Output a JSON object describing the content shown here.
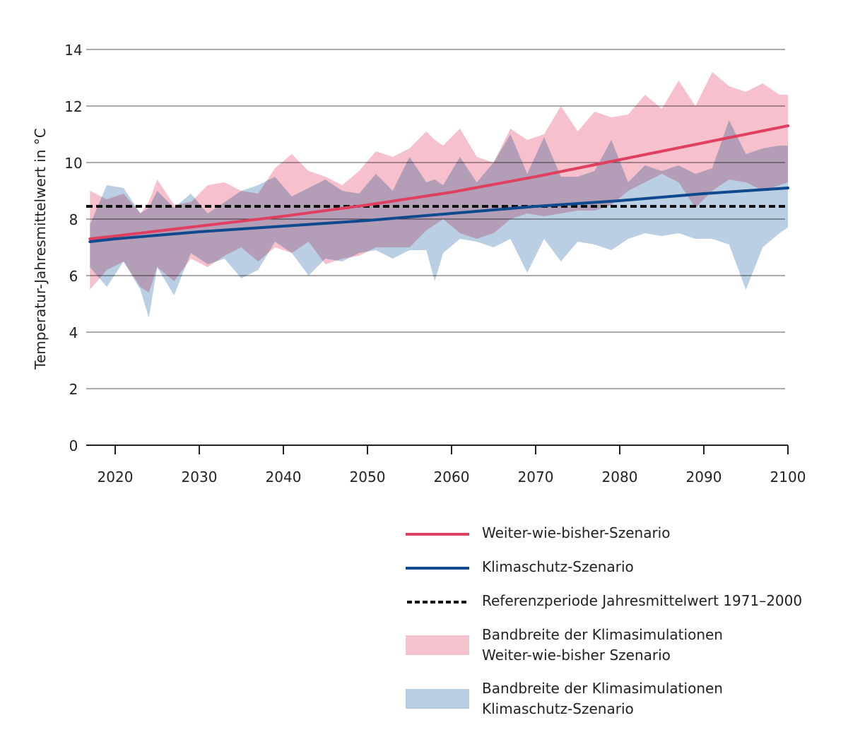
{
  "chart_data": {
    "type": "area",
    "title": "",
    "xlabel": "",
    "ylabel": "Temperatur-Jahresmittelwert in °C",
    "xlim": [
      2017,
      2100
    ],
    "ylim": [
      0,
      14
    ],
    "xticks": [
      "2020",
      "2030",
      "2040",
      "2050",
      "2060",
      "2070",
      "2080",
      "2090",
      "2100"
    ],
    "yticks": [
      "0",
      "2",
      "4",
      "6",
      "8",
      "10",
      "12",
      "14"
    ],
    "grid": true,
    "legend_position": "bottom-right",
    "band_x": [
      2017,
      2019,
      2021,
      2023,
      2024,
      2025,
      2027,
      2029,
      2031,
      2033,
      2035,
      2037,
      2039,
      2041,
      2043,
      2045,
      2047,
      2049,
      2051,
      2053,
      2055,
      2057,
      2058,
      2059,
      2061,
      2063,
      2065,
      2067,
      2069,
      2071,
      2073,
      2075,
      2077,
      2079,
      2081,
      2083,
      2085,
      2087,
      2089,
      2091,
      2093,
      2095,
      2097,
      2099,
      2100
    ],
    "bands": [
      {
        "name": "Bandbreite der Klimasimulationen Weiter-wie-bisher Szenario",
        "color": "#f2a7b8",
        "upper": [
          9.0,
          8.7,
          8.9,
          8.2,
          8.6,
          9.4,
          8.5,
          8.6,
          9.2,
          9.3,
          9.0,
          8.9,
          9.8,
          10.3,
          9.7,
          9.5,
          9.2,
          9.7,
          10.4,
          10.2,
          10.5,
          11.1,
          10.8,
          10.6,
          11.2,
          10.2,
          10.0,
          11.2,
          10.8,
          11.0,
          12.0,
          11.1,
          11.8,
          11.6,
          11.7,
          12.4,
          11.9,
          12.9,
          12.0,
          13.2,
          12.7,
          12.5,
          12.8,
          12.4,
          12.4
        ],
        "lower": [
          5.5,
          6.2,
          6.5,
          5.6,
          5.4,
          6.3,
          5.8,
          6.6,
          6.3,
          6.7,
          7.0,
          6.5,
          7.0,
          6.8,
          7.2,
          6.4,
          6.6,
          6.7,
          7.0,
          7.0,
          7.0,
          7.6,
          7.8,
          8.0,
          7.5,
          7.3,
          7.5,
          8.0,
          8.2,
          8.1,
          8.2,
          8.3,
          8.3,
          8.5,
          9.0,
          9.3,
          9.6,
          9.3,
          8.4,
          9.0,
          9.4,
          9.3,
          9.0,
          9.2,
          9.3
        ]
      },
      {
        "name": "Bandbreite der Klimasimulationen Klimaschutz-Szenario",
        "color": "#9dbbd8",
        "upper": [
          7.8,
          9.2,
          9.1,
          8.2,
          8.4,
          9.0,
          8.4,
          8.9,
          8.2,
          8.6,
          9.0,
          9.2,
          9.5,
          8.8,
          9.1,
          9.4,
          9.0,
          8.9,
          9.6,
          9.0,
          10.2,
          9.3,
          9.4,
          9.2,
          10.2,
          9.3,
          10.0,
          11.0,
          9.6,
          10.9,
          9.5,
          9.5,
          9.7,
          10.8,
          9.3,
          9.9,
          9.7,
          9.9,
          9.6,
          9.8,
          11.5,
          10.3,
          10.5,
          10.6,
          10.6
        ],
        "lower": [
          6.3,
          5.6,
          6.5,
          5.5,
          4.5,
          6.3,
          5.3,
          6.8,
          6.4,
          6.6,
          5.9,
          6.2,
          7.2,
          6.8,
          6.0,
          6.6,
          6.5,
          6.8,
          6.9,
          6.6,
          6.9,
          6.9,
          5.8,
          6.8,
          7.3,
          7.2,
          7.0,
          7.3,
          6.1,
          7.3,
          6.5,
          7.2,
          7.1,
          6.9,
          7.3,
          7.5,
          7.4,
          7.5,
          7.3,
          7.3,
          7.1,
          5.5,
          7.0,
          7.5,
          7.7
        ]
      }
    ],
    "line_x": [
      2017,
      2020,
      2030,
      2040,
      2050,
      2060,
      2070,
      2080,
      2090,
      2100
    ],
    "series": [
      {
        "name": "Weiter-wie-bisher-Szenario",
        "color": "#e0405f",
        "values": [
          7.3,
          7.4,
          7.75,
          8.1,
          8.5,
          8.95,
          9.5,
          10.1,
          10.7,
          11.3
        ]
      },
      {
        "name": "Klimaschutz-Szenario",
        "color": "#104a8e",
        "values": [
          7.2,
          7.3,
          7.55,
          7.75,
          7.95,
          8.2,
          8.45,
          8.65,
          8.9,
          9.1
        ]
      }
    ],
    "reference": {
      "name": "Referenzperiode Jahresmittelwert 1971–2000",
      "value": 8.45,
      "color": "#111111"
    }
  },
  "legend": {
    "items": [
      {
        "label": "Weiter-wie-bisher-Szenario"
      },
      {
        "label": "Klimaschutz-Szenario"
      },
      {
        "label": "Referenzperiode Jahresmittelwert 1971–2000"
      },
      {
        "label": "Bandbreite der Klimasimulationen",
        "label2": "Weiter-wie-bisher Szenario"
      },
      {
        "label": "Bandbreite der Klimasimulationen",
        "label2": "Klimaschutz-Szenario"
      }
    ]
  }
}
